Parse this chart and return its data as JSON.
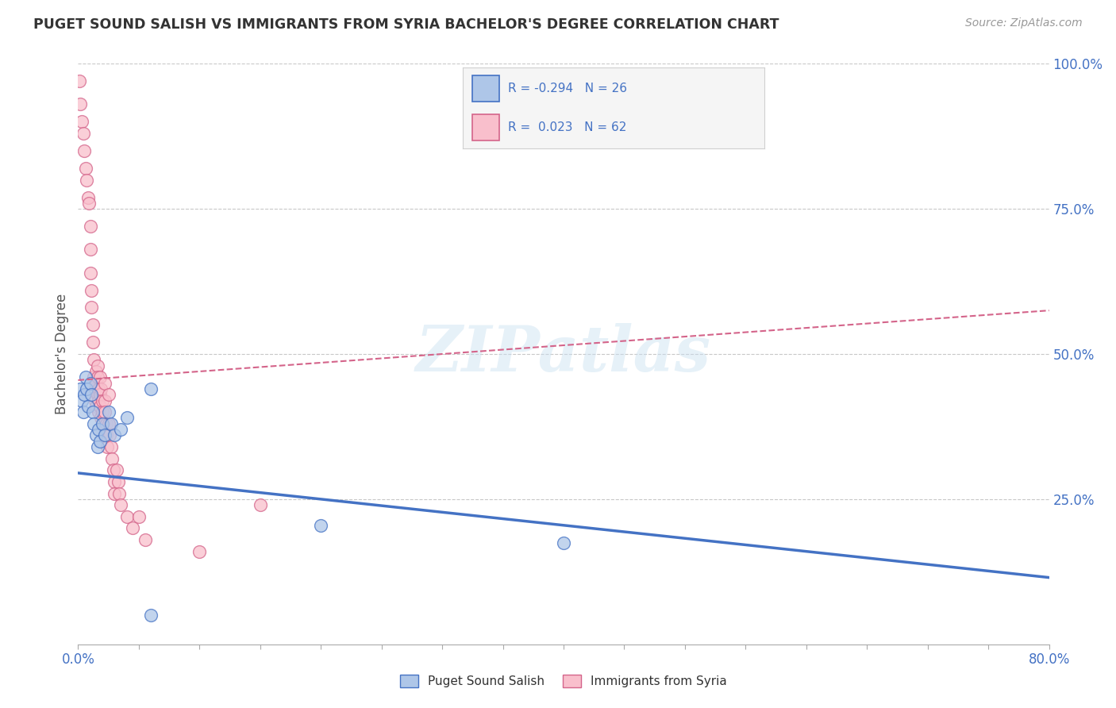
{
  "title": "PUGET SOUND SALISH VS IMMIGRANTS FROM SYRIA BACHELOR'S DEGREE CORRELATION CHART",
  "source": "Source: ZipAtlas.com",
  "ylabel": "Bachelor's Degree",
  "xlim": [
    0.0,
    0.8
  ],
  "ylim": [
    0.0,
    1.0
  ],
  "blue_color": "#aec6e8",
  "blue_line_color": "#4472c4",
  "pink_color": "#f9bfcc",
  "pink_line_color": "#d4648a",
  "blue_R": -0.294,
  "blue_N": 26,
  "pink_R": 0.023,
  "pink_N": 62,
  "blue_scatter": [
    [
      0.002,
      0.44
    ],
    [
      0.003,
      0.42
    ],
    [
      0.004,
      0.4
    ],
    [
      0.005,
      0.43
    ],
    [
      0.006,
      0.46
    ],
    [
      0.007,
      0.44
    ],
    [
      0.008,
      0.41
    ],
    [
      0.01,
      0.45
    ],
    [
      0.011,
      0.43
    ],
    [
      0.012,
      0.4
    ],
    [
      0.013,
      0.38
    ],
    [
      0.015,
      0.36
    ],
    [
      0.016,
      0.34
    ],
    [
      0.017,
      0.37
    ],
    [
      0.018,
      0.35
    ],
    [
      0.02,
      0.38
    ],
    [
      0.022,
      0.36
    ],
    [
      0.025,
      0.4
    ],
    [
      0.027,
      0.38
    ],
    [
      0.03,
      0.36
    ],
    [
      0.035,
      0.37
    ],
    [
      0.04,
      0.39
    ],
    [
      0.06,
      0.44
    ],
    [
      0.2,
      0.205
    ],
    [
      0.4,
      0.175
    ],
    [
      0.06,
      0.05
    ]
  ],
  "pink_scatter": [
    [
      0.001,
      0.97
    ],
    [
      0.002,
      0.93
    ],
    [
      0.003,
      0.9
    ],
    [
      0.004,
      0.88
    ],
    [
      0.005,
      0.85
    ],
    [
      0.006,
      0.82
    ],
    [
      0.007,
      0.8
    ],
    [
      0.008,
      0.77
    ],
    [
      0.009,
      0.76
    ],
    [
      0.01,
      0.72
    ],
    [
      0.01,
      0.68
    ],
    [
      0.01,
      0.64
    ],
    [
      0.011,
      0.61
    ],
    [
      0.011,
      0.58
    ],
    [
      0.012,
      0.55
    ],
    [
      0.012,
      0.52
    ],
    [
      0.013,
      0.49
    ],
    [
      0.013,
      0.46
    ],
    [
      0.014,
      0.44
    ],
    [
      0.014,
      0.42
    ],
    [
      0.015,
      0.41
    ],
    [
      0.015,
      0.47
    ],
    [
      0.015,
      0.45
    ],
    [
      0.016,
      0.43
    ],
    [
      0.016,
      0.48
    ],
    [
      0.016,
      0.46
    ],
    [
      0.017,
      0.44
    ],
    [
      0.017,
      0.42
    ],
    [
      0.017,
      0.4
    ],
    [
      0.018,
      0.46
    ],
    [
      0.018,
      0.43
    ],
    [
      0.018,
      0.41
    ],
    [
      0.019,
      0.39
    ],
    [
      0.019,
      0.44
    ],
    [
      0.02,
      0.42
    ],
    [
      0.02,
      0.4
    ],
    [
      0.021,
      0.38
    ],
    [
      0.021,
      0.36
    ],
    [
      0.022,
      0.45
    ],
    [
      0.022,
      0.42
    ],
    [
      0.022,
      0.4
    ],
    [
      0.023,
      0.38
    ],
    [
      0.023,
      0.36
    ],
    [
      0.024,
      0.34
    ],
    [
      0.025,
      0.43
    ],
    [
      0.025,
      0.38
    ],
    [
      0.026,
      0.36
    ],
    [
      0.027,
      0.34
    ],
    [
      0.028,
      0.32
    ],
    [
      0.029,
      0.3
    ],
    [
      0.03,
      0.28
    ],
    [
      0.03,
      0.26
    ],
    [
      0.032,
      0.3
    ],
    [
      0.033,
      0.28
    ],
    [
      0.034,
      0.26
    ],
    [
      0.035,
      0.24
    ],
    [
      0.04,
      0.22
    ],
    [
      0.045,
      0.2
    ],
    [
      0.05,
      0.22
    ],
    [
      0.055,
      0.18
    ],
    [
      0.15,
      0.24
    ],
    [
      0.1,
      0.16
    ]
  ],
  "blue_line": [
    0.0,
    0.8,
    0.295,
    0.115
  ],
  "pink_line": [
    0.0,
    0.8,
    0.455,
    0.575
  ],
  "watermark": "ZIPatlas",
  "background_color": "#ffffff",
  "grid_color": "#c8c8c8",
  "legend_box_color": "#f5f5f5",
  "legend_border_color": "#d0d0d0"
}
